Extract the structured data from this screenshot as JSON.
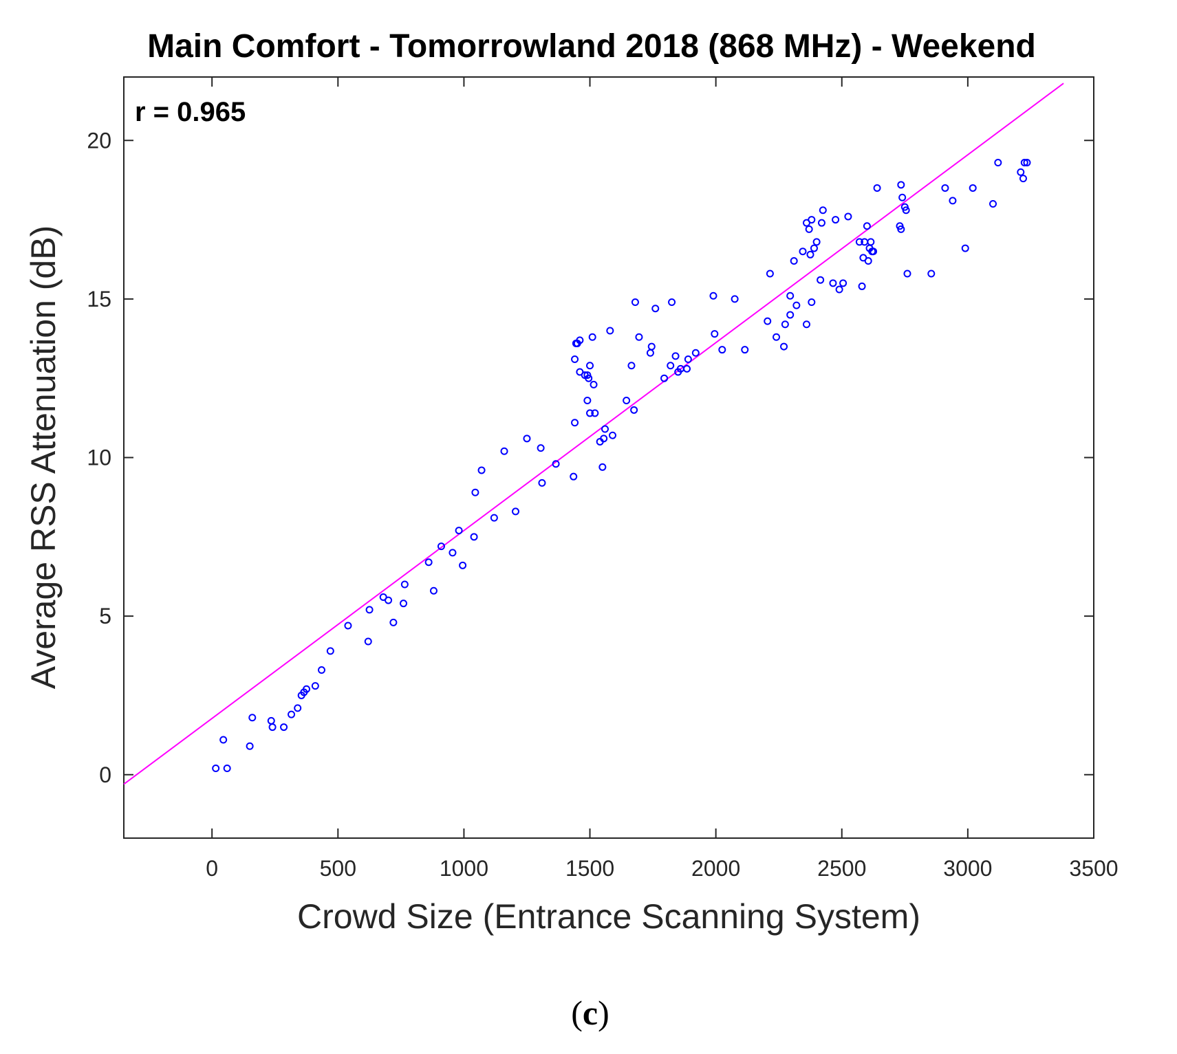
{
  "chart_data": {
    "type": "scatter",
    "title": "Main Comfort - Tomorrowland 2018 (868 MHz) - Weekend",
    "xlabel": "Crowd Size (Entrance Scanning System)",
    "ylabel": "Average RSS Attenuation (dB)",
    "xlim": [
      -350,
      3500
    ],
    "ylim": [
      -2,
      22
    ],
    "xticks": [
      0,
      500,
      1000,
      1500,
      2000,
      2500,
      3000,
      3500
    ],
    "yticks": [
      0,
      5,
      10,
      15,
      20
    ],
    "grid": false,
    "annotation": "r = 0.965",
    "caption_open": "(",
    "caption_letter": "c",
    "caption_close": ")",
    "colors": {
      "points": "#0000ff",
      "fit": "#ff00ff",
      "axes": "#262626"
    },
    "fit_line": {
      "x": [
        -350,
        3380
      ],
      "y": [
        -0.3,
        21.8
      ],
      "name": "linear fit"
    },
    "series": [
      {
        "name": "observations",
        "points": [
          [
            15,
            0.2
          ],
          [
            45,
            1.1
          ],
          [
            60,
            0.2
          ],
          [
            150,
            0.9
          ],
          [
            160,
            1.8
          ],
          [
            235,
            1.7
          ],
          [
            240,
            1.5
          ],
          [
            285,
            1.5
          ],
          [
            315,
            1.9
          ],
          [
            340,
            2.1
          ],
          [
            355,
            2.5
          ],
          [
            365,
            2.6
          ],
          [
            375,
            2.7
          ],
          [
            410,
            2.8
          ],
          [
            435,
            3.3
          ],
          [
            470,
            3.9
          ],
          [
            540,
            4.7
          ],
          [
            620,
            4.2
          ],
          [
            625,
            5.2
          ],
          [
            680,
            5.6
          ],
          [
            700,
            5.5
          ],
          [
            720,
            4.8
          ],
          [
            760,
            5.4
          ],
          [
            765,
            6.0
          ],
          [
            860,
            6.7
          ],
          [
            880,
            5.8
          ],
          [
            910,
            7.2
          ],
          [
            955,
            7.0
          ],
          [
            980,
            7.7
          ],
          [
            995,
            6.6
          ],
          [
            1040,
            7.5
          ],
          [
            1045,
            8.9
          ],
          [
            1070,
            9.6
          ],
          [
            1120,
            8.1
          ],
          [
            1160,
            10.2
          ],
          [
            1205,
            8.3
          ],
          [
            1250,
            10.6
          ],
          [
            1305,
            10.3
          ],
          [
            1310,
            9.2
          ],
          [
            1365,
            9.8
          ],
          [
            1435,
            9.4
          ],
          [
            1440,
            11.1
          ],
          [
            1440,
            13.1
          ],
          [
            1445,
            13.6
          ],
          [
            1450,
            13.6
          ],
          [
            1460,
            13.7
          ],
          [
            1460,
            12.7
          ],
          [
            1480,
            12.6
          ],
          [
            1490,
            11.8
          ],
          [
            1490,
            12.6
          ],
          [
            1495,
            12.5
          ],
          [
            1500,
            11.4
          ],
          [
            1500,
            12.9
          ],
          [
            1510,
            13.8
          ],
          [
            1515,
            12.3
          ],
          [
            1520,
            11.4
          ],
          [
            1540,
            10.5
          ],
          [
            1550,
            9.7
          ],
          [
            1555,
            10.6
          ],
          [
            1560,
            10.9
          ],
          [
            1580,
            14.0
          ],
          [
            1590,
            10.7
          ],
          [
            1645,
            11.8
          ],
          [
            1665,
            12.9
          ],
          [
            1675,
            11.5
          ],
          [
            1680,
            14.9
          ],
          [
            1695,
            13.8
          ],
          [
            1740,
            13.3
          ],
          [
            1745,
            13.5
          ],
          [
            1760,
            14.7
          ],
          [
            1795,
            12.5
          ],
          [
            1820,
            12.9
          ],
          [
            1825,
            14.9
          ],
          [
            1840,
            13.2
          ],
          [
            1850,
            12.7
          ],
          [
            1860,
            12.8
          ],
          [
            1885,
            12.8
          ],
          [
            1890,
            13.1
          ],
          [
            1920,
            13.3
          ],
          [
            1990,
            15.1
          ],
          [
            1995,
            13.9
          ],
          [
            2025,
            13.4
          ],
          [
            2075,
            15.0
          ],
          [
            2115,
            13.4
          ],
          [
            2205,
            14.3
          ],
          [
            2215,
            15.8
          ],
          [
            2240,
            13.8
          ],
          [
            2270,
            13.5
          ],
          [
            2275,
            14.2
          ],
          [
            2295,
            14.5
          ],
          [
            2295,
            15.1
          ],
          [
            2310,
            16.2
          ],
          [
            2320,
            14.8
          ],
          [
            2345,
            16.5
          ],
          [
            2360,
            14.2
          ],
          [
            2360,
            17.4
          ],
          [
            2370,
            17.2
          ],
          [
            2375,
            16.4
          ],
          [
            2380,
            14.9
          ],
          [
            2380,
            17.5
          ],
          [
            2390,
            16.6
          ],
          [
            2400,
            16.8
          ],
          [
            2415,
            15.6
          ],
          [
            2420,
            17.4
          ],
          [
            2425,
            17.8
          ],
          [
            2465,
            15.5
          ],
          [
            2475,
            17.5
          ],
          [
            2490,
            15.3
          ],
          [
            2505,
            15.5
          ],
          [
            2525,
            17.6
          ],
          [
            2570,
            16.8
          ],
          [
            2580,
            15.4
          ],
          [
            2585,
            16.3
          ],
          [
            2590,
            16.8
          ],
          [
            2600,
            17.3
          ],
          [
            2605,
            16.2
          ],
          [
            2610,
            16.6
          ],
          [
            2615,
            16.8
          ],
          [
            2620,
            16.5
          ],
          [
            2625,
            16.5
          ],
          [
            2640,
            18.5
          ],
          [
            2730,
            17.3
          ],
          [
            2735,
            17.2
          ],
          [
            2735,
            18.6
          ],
          [
            2740,
            18.2
          ],
          [
            2750,
            17.9
          ],
          [
            2755,
            17.8
          ],
          [
            2760,
            15.8
          ],
          [
            2855,
            15.8
          ],
          [
            2910,
            18.5
          ],
          [
            2940,
            18.1
          ],
          [
            2990,
            16.6
          ],
          [
            3020,
            18.5
          ],
          [
            3100,
            18.0
          ],
          [
            3120,
            19.3
          ],
          [
            3210,
            19.0
          ],
          [
            3220,
            18.8
          ],
          [
            3225,
            19.3
          ],
          [
            3235,
            19.3
          ]
        ]
      }
    ]
  }
}
